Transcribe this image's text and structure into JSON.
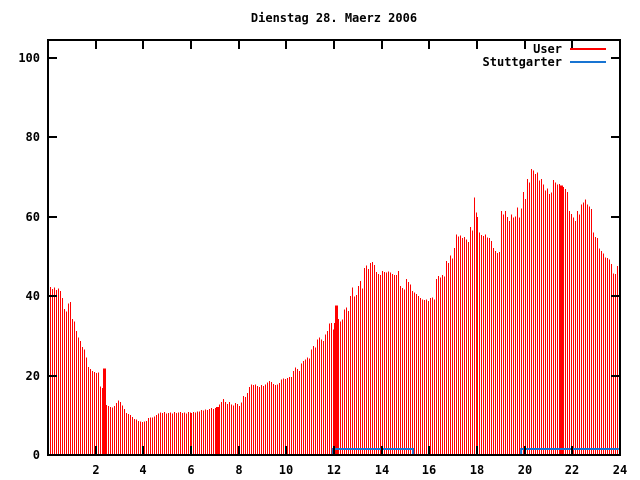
{
  "title": "Dienstag 28. Maerz 2006",
  "colors": {
    "user_series": "#ff0000",
    "stuttgarter_series": "#1874d2",
    "axis": "#000000",
    "background": "#ffffff",
    "text": "#000000"
  },
  "legend": {
    "position": "top-right",
    "items": [
      {
        "label": "User",
        "color": "#ff0000"
      },
      {
        "label": "Stuttgarter",
        "color": "#1874d2"
      }
    ]
  },
  "chart_data": {
    "type": "bar",
    "title": "Dienstag 28. Maerz 2006",
    "xlabel": "",
    "ylabel": "",
    "xlim": [
      0,
      24
    ],
    "ylim": [
      0,
      104.5
    ],
    "x_ticks": [
      2,
      4,
      6,
      8,
      10,
      12,
      14,
      16,
      18,
      20,
      22,
      24
    ],
    "y_ticks": [
      0,
      20,
      40,
      60,
      80,
      100
    ],
    "grid": false,
    "legend_position": "top-right-inside",
    "series": [
      {
        "name": "User",
        "style": "impulses",
        "color": "#ff0000",
        "interval_minutes": 5,
        "dense_bar_indices": [
          28,
          85,
          145,
          258
        ],
        "values": [
          46.0,
          42.3,
          41.8,
          42.2,
          41.5,
          42.0,
          41.3,
          39.6,
          36.8,
          36.2,
          38.2,
          38.6,
          34.2,
          33.6,
          31.2,
          29.6,
          28.7,
          27.2,
          26.6,
          24.6,
          22.2,
          21.6,
          21.1,
          20.9,
          20.6,
          20.8,
          17.2,
          16.9,
          21.8,
          12.6,
          12.3,
          12.1,
          12.0,
          12.4,
          13.1,
          13.7,
          13.4,
          12.5,
          11.6,
          10.6,
          10.3,
          10.1,
          9.6,
          9.1,
          8.9,
          8.6,
          8.5,
          8.3,
          8.4,
          8.6,
          9.3,
          9.5,
          9.4,
          9.7,
          10.1,
          10.5,
          10.7,
          10.6,
          10.8,
          10.5,
          10.6,
          10.7,
          10.5,
          10.8,
          10.6,
          10.7,
          10.8,
          10.6,
          10.7,
          10.5,
          10.8,
          10.7,
          10.6,
          10.8,
          10.7,
          10.9,
          11.0,
          11.3,
          11.2,
          11.4,
          11.3,
          11.6,
          11.8,
          11.6,
          11.9,
          12.1,
          12.7,
          13.3,
          14.1,
          13.3,
          12.9,
          13.3,
          12.7,
          12.5,
          13.1,
          12.9,
          12.3,
          13.2,
          14.8,
          14.6,
          15.6,
          17.1,
          17.8,
          17.6,
          17.8,
          17.4,
          17.1,
          17.6,
          17.4,
          17.8,
          18.3,
          18.6,
          18.4,
          17.9,
          17.6,
          17.7,
          18.1,
          19.0,
          19.3,
          19.1,
          19.4,
          19.7,
          19.6,
          21.1,
          22.0,
          21.6,
          21.2,
          23.1,
          23.7,
          24.1,
          24.5,
          24.3,
          26.6,
          27.5,
          27.1,
          29.1,
          29.6,
          29.1,
          28.7,
          30.4,
          31.2,
          33.1,
          33.3,
          31.6,
          33.3,
          37.7,
          34.2,
          33.6,
          34.1,
          36.6,
          37.1,
          36.3,
          40.1,
          42.2,
          39.9,
          40.3,
          42.6,
          43.8,
          41.9,
          47.1,
          47.7,
          46.9,
          48.3,
          48.6,
          47.9,
          46.1,
          45.6,
          45.3,
          46.4,
          46.1,
          46.0,
          46.2,
          46.0,
          45.6,
          45.4,
          45.3,
          46.4,
          42.6,
          42.1,
          41.7,
          44.3,
          43.6,
          43.0,
          41.3,
          40.9,
          40.5,
          40.0,
          39.6,
          39.2,
          39.1,
          39.2,
          38.8,
          39.5,
          39.7,
          39.2,
          44.3,
          45.1,
          44.7,
          45.3,
          44.9,
          48.9,
          48.3,
          50.2,
          49.5,
          52.1,
          55.6,
          55.0,
          55.3,
          54.6,
          54.9,
          54.3,
          53.7,
          57.4,
          56.6,
          64.9,
          61.1,
          59.9,
          56.0,
          55.4,
          55.2,
          55.6,
          54.8,
          54.6,
          53.9,
          52.2,
          51.4,
          50.9,
          51.1,
          61.5,
          60.6,
          61.4,
          60.0,
          59.0,
          60.6,
          59.8,
          60.1,
          62.4,
          59.8,
          62.1,
          66.2,
          64.5,
          69.5,
          68.7,
          72.1,
          71.6,
          70.8,
          71.1,
          69.1,
          69.5,
          68.1,
          66.6,
          67.1,
          65.7,
          66.1,
          69.3,
          68.6,
          68.1,
          68.3,
          67.9,
          67.5,
          67.0,
          66.2,
          61.5,
          60.7,
          59.8,
          59.0,
          61.5,
          60.6,
          63.1,
          63.6,
          64.4,
          63.1,
          62.6,
          62.0,
          56.1,
          54.9,
          54.6,
          52.0,
          51.4,
          50.8,
          49.8,
          49.6,
          49.3,
          48.1,
          45.7,
          45.6,
          47.6,
          48.6
        ]
      },
      {
        "name": "Stuttgarter",
        "style": "step-line",
        "color": "#1874d2",
        "points": [
          [
            11.95,
            0
          ],
          [
            11.95,
            1.5
          ],
          [
            15.32,
            1.5
          ],
          [
            15.32,
            0
          ],
          [
            19.85,
            0
          ],
          [
            19.85,
            1.5
          ],
          [
            23.95,
            1.5
          ]
        ]
      }
    ]
  }
}
